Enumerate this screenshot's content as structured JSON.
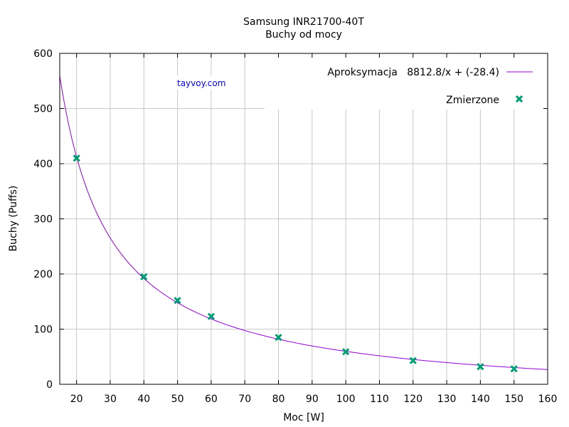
{
  "chart_data": {
    "type": "scatter",
    "title": "Samsung INR21700-40T",
    "subtitle": "Buchy od mocy",
    "xlabel": "Moc [W]",
    "ylabel": "Buchy (Puffs)",
    "xlim": [
      15,
      160
    ],
    "ylim": [
      0,
      600
    ],
    "x_ticks": [
      20,
      30,
      40,
      50,
      60,
      70,
      80,
      90,
      100,
      110,
      120,
      130,
      140,
      150,
      160
    ],
    "y_ticks": [
      0,
      100,
      200,
      300,
      400,
      500,
      600
    ],
    "grid": true,
    "legend_position": "top-right",
    "watermark": "tayvoy.com",
    "series": [
      {
        "name": "Aproksymacja   8812.8/x + (-28.4)",
        "kind": "line",
        "formula": "8812.8/x + (-28.4)",
        "a": 8812.8,
        "b": -28.4,
        "color": "#9400d3"
      },
      {
        "name": "Zmierzone",
        "kind": "points",
        "color": "#009e73",
        "x": [
          20,
          40,
          50,
          60,
          80,
          100,
          120,
          140,
          150
        ],
        "y": [
          410,
          195,
          152,
          123,
          85,
          59,
          43,
          32,
          28
        ]
      }
    ]
  }
}
